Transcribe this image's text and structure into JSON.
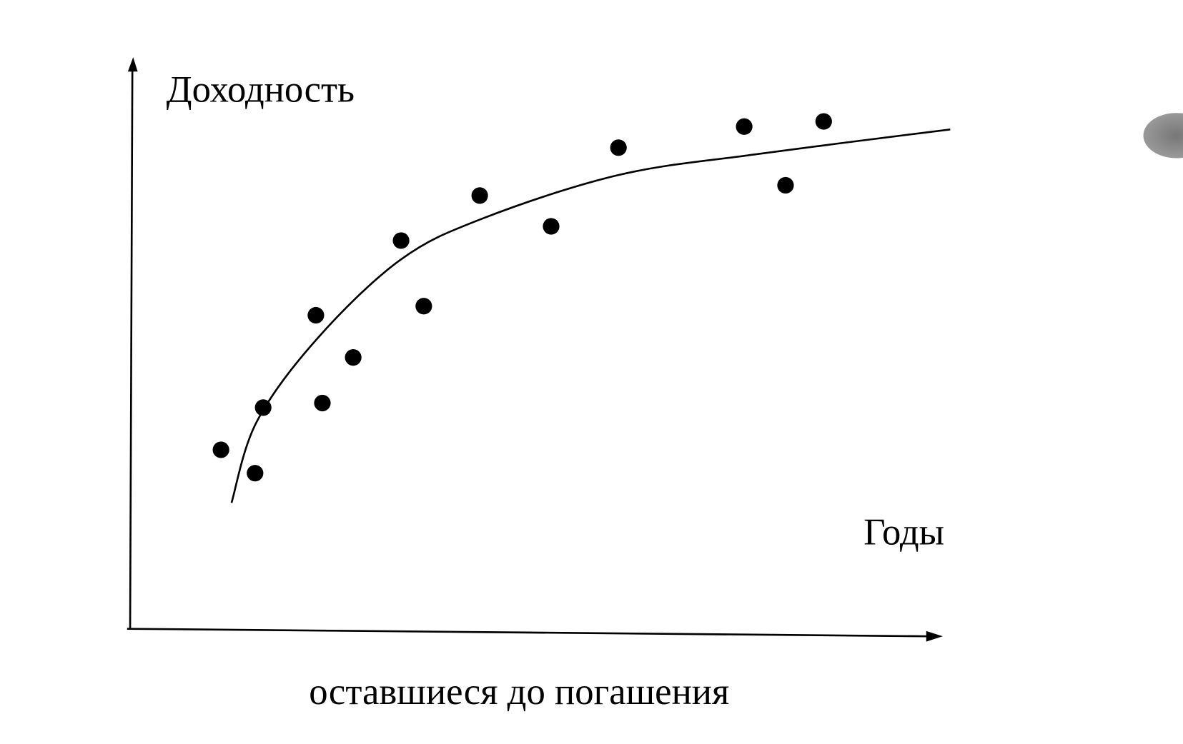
{
  "chart_data": {
    "type": "scatter",
    "ylabel": "Доходность",
    "xlabel_line1": "Годы",
    "xlabel_line2": "оставшиеся до погашения",
    "xlim": [
      0,
      100
    ],
    "ylim": [
      0,
      100
    ],
    "color": "#000000",
    "points": {
      "x": [
        11.2,
        15.4,
        16.4,
        22.9,
        23.7,
        27.5,
        33.4,
        36.2,
        43.1,
        51.9,
        60.2,
        75.7,
        80.8,
        85.5
      ],
      "y": [
        31.4,
        27.3,
        38.8,
        55.0,
        39.6,
        47.6,
        68.1,
        56.6,
        76.0,
        70.6,
        84.4,
        88.1,
        77.8,
        89.0
      ]
    },
    "curve": {
      "x": [
        12.5,
        15.6,
        23.0,
        33.3,
        43.5,
        60.2,
        76.9,
        101.1
      ],
      "y": [
        22.1,
        36.3,
        50.8,
        64.7,
        72.0,
        79.6,
        83.2,
        87.6
      ]
    }
  }
}
